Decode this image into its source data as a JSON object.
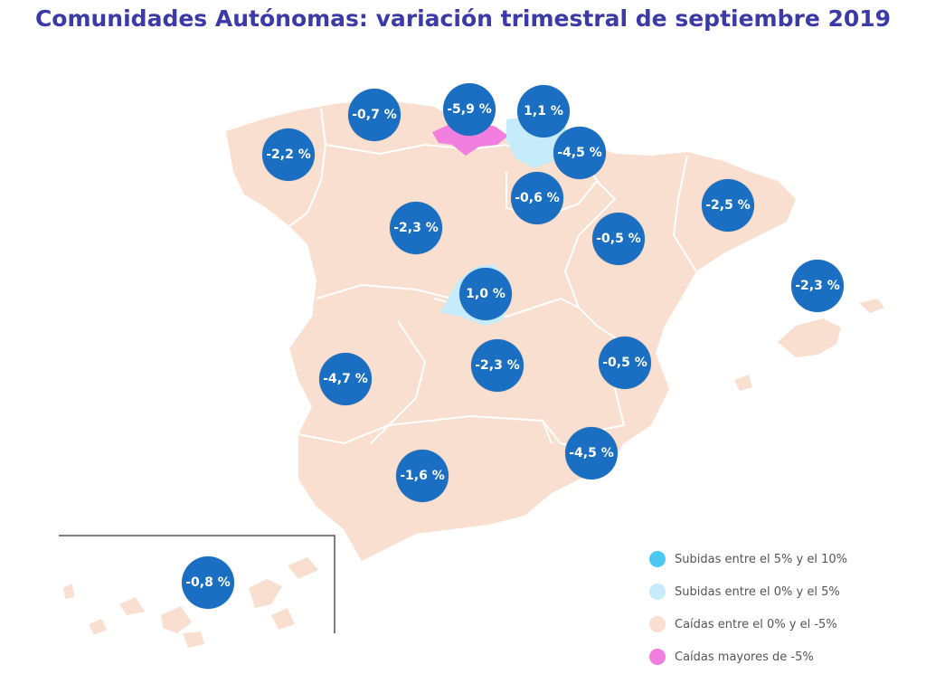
{
  "title": "Comunidades Autónomas: variación trimestral de septiembre 2019",
  "colors": {
    "sube_5_10": "#4cc8f4",
    "sube_0_5": "#c6ebfa",
    "cae_0_5": "#f9dfcf",
    "cae_mas_5": "#f27fe0",
    "bubble": "#1a6fc2"
  },
  "regions": [
    {
      "name": "galicia",
      "value": "-2,2 %"
    },
    {
      "name": "asturias",
      "value": "-0,7 %"
    },
    {
      "name": "cantabria",
      "value": "-5,9 %"
    },
    {
      "name": "pais-vasco",
      "value": "1,1 %"
    },
    {
      "name": "navarra",
      "value": "-4,5 %"
    },
    {
      "name": "la-rioja",
      "value": "-0,6 %"
    },
    {
      "name": "castilla-leon",
      "value": "-2,3 %"
    },
    {
      "name": "aragon",
      "value": "-0,5 %"
    },
    {
      "name": "cataluna",
      "value": "-2,5 %"
    },
    {
      "name": "baleares",
      "value": "-2,3 %"
    },
    {
      "name": "madrid",
      "value": "1,0 %"
    },
    {
      "name": "extremadura",
      "value": "-4,7 %"
    },
    {
      "name": "castilla-la-mancha",
      "value": "-2,3 %"
    },
    {
      "name": "comunidad-valenciana",
      "value": "-0,5 %"
    },
    {
      "name": "murcia",
      "value": "-4,5 %"
    },
    {
      "name": "andalucia",
      "value": "-1,6 %"
    },
    {
      "name": "canarias",
      "value": "-0,8 %"
    }
  ],
  "legend": [
    {
      "label": "Subidas entre el 5% y el 10%",
      "color": "#4cc8f4"
    },
    {
      "label": "Subidas entre el 0% y el 5%",
      "color": "#c6ebfa"
    },
    {
      "label": "Caídas entre el 0% y el -5%",
      "color": "#f9dfcf"
    },
    {
      "label": "Caídas mayores de -5%",
      "color": "#f27fe0"
    }
  ]
}
